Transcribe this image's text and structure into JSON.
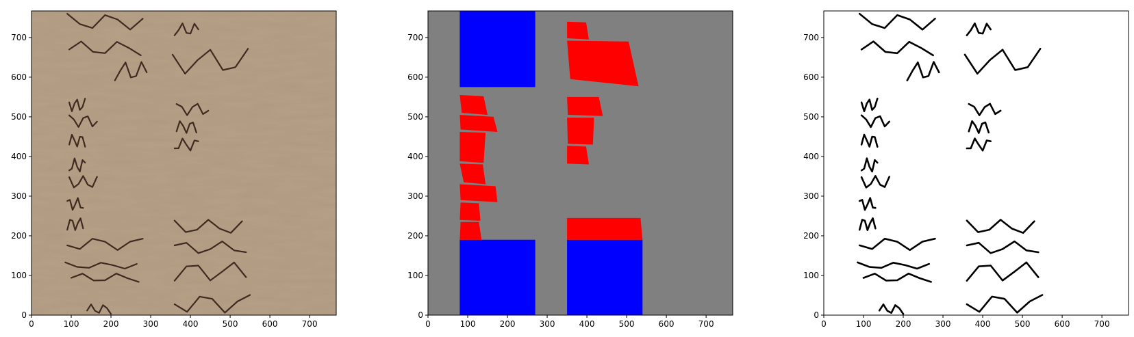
{
  "figure": {
    "panel_count": 3
  },
  "chart_data": [
    {
      "type": "image",
      "panel": "original-manuscript-scan",
      "xlim": [
        0,
        767
      ],
      "ylim": [
        767,
        0
      ],
      "x_ticks": [
        0,
        100,
        200,
        300,
        400,
        500,
        600,
        700
      ],
      "y_ticks": [
        0,
        100,
        200,
        300,
        400,
        500,
        600,
        700
      ],
      "colors": {
        "parchment": "#b6a187",
        "ink": "#2a1610"
      }
    },
    {
      "type": "image",
      "panel": "segmentation-mask",
      "xlim": [
        0,
        767
      ],
      "ylim": [
        767,
        0
      ],
      "x_ticks": [
        0,
        100,
        200,
        300,
        400,
        500,
        600,
        700
      ],
      "y_ticks": [
        0,
        100,
        200,
        300,
        400,
        500,
        600,
        700
      ],
      "colors": {
        "background": "#808080",
        "blue_region": "#0000ff",
        "red_region": "#ff0000"
      },
      "blue_regions": [
        [
          [
            80,
            0
          ],
          [
            270,
            0
          ],
          [
            270,
            190
          ],
          [
            80,
            190
          ]
        ],
        [
          [
            350,
            0
          ],
          [
            540,
            0
          ],
          [
            540,
            190
          ],
          [
            350,
            190
          ]
        ],
        [
          [
            80,
            575
          ],
          [
            270,
            575
          ],
          [
            270,
            767
          ],
          [
            80,
            767
          ]
        ]
      ],
      "red_regions": [
        [
          [
            80,
            190
          ],
          [
            135,
            190
          ],
          [
            128,
            235
          ],
          [
            82,
            235
          ]
        ],
        [
          [
            80,
            240
          ],
          [
            132,
            238
          ],
          [
            128,
            282
          ],
          [
            82,
            284
          ]
        ],
        [
          [
            82,
            290
          ],
          [
            175,
            285
          ],
          [
            170,
            325
          ],
          [
            80,
            330
          ]
        ],
        [
          [
            90,
            335
          ],
          [
            145,
            330
          ],
          [
            138,
            380
          ],
          [
            80,
            382
          ]
        ],
        [
          [
            80,
            388
          ],
          [
            140,
            384
          ],
          [
            145,
            460
          ],
          [
            80,
            462
          ]
        ],
        [
          [
            82,
            468
          ],
          [
            175,
            462
          ],
          [
            165,
            500
          ],
          [
            80,
            505
          ]
        ],
        [
          [
            85,
            510
          ],
          [
            150,
            505
          ],
          [
            140,
            552
          ],
          [
            80,
            555
          ]
        ],
        [
          [
            350,
            190
          ],
          [
            540,
            190
          ],
          [
            535,
            245
          ],
          [
            350,
            245
          ]
        ],
        [
          [
            350,
            382
          ],
          [
            405,
            380
          ],
          [
            398,
            425
          ],
          [
            350,
            427
          ]
        ],
        [
          [
            352,
            432
          ],
          [
            415,
            430
          ],
          [
            418,
            498
          ],
          [
            350,
            498
          ]
        ],
        [
          [
            352,
            505
          ],
          [
            440,
            502
          ],
          [
            430,
            550
          ],
          [
            350,
            550
          ]
        ],
        [
          [
            358,
            595
          ],
          [
            530,
            577
          ],
          [
            505,
            690
          ],
          [
            350,
            692
          ]
        ],
        [
          [
            350,
            698
          ],
          [
            405,
            695
          ],
          [
            398,
            738
          ],
          [
            350,
            740
          ]
        ]
      ]
    },
    {
      "type": "image",
      "panel": "binarized-text",
      "xlim": [
        0,
        767
      ],
      "ylim": [
        767,
        0
      ],
      "x_ticks": [
        0,
        100,
        200,
        300,
        400,
        500,
        600,
        700
      ],
      "y_ticks": [
        0,
        100,
        200,
        300,
        400,
        500,
        600,
        700
      ],
      "colors": {
        "background": "#ffffff",
        "ink": "#000000"
      }
    }
  ]
}
